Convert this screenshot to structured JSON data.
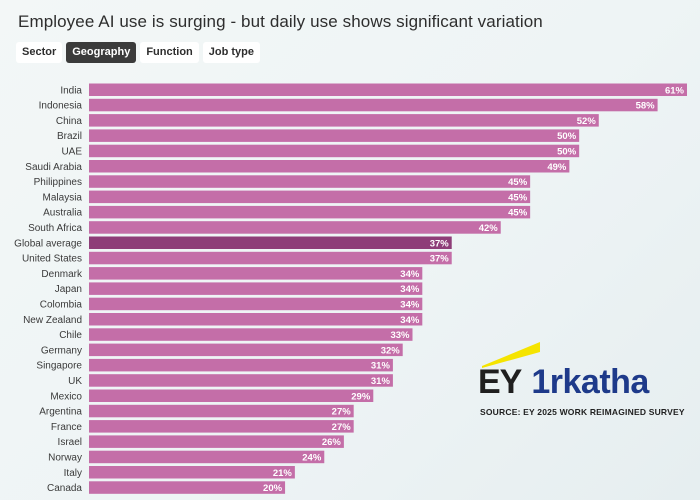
{
  "title": "Employee AI use is surging - but daily use shows significant variation",
  "tabs": [
    {
      "label": "Sector",
      "active": false
    },
    {
      "label": "Geography",
      "active": true
    },
    {
      "label": "Function",
      "active": false
    },
    {
      "label": "Job type",
      "active": false
    }
  ],
  "colors": {
    "bar": "#c46ea8",
    "bar_highlight": "#8e3d78",
    "label_text": "#ffffff"
  },
  "highlight_category": "Global average",
  "logo": {
    "ey": "EY",
    "brand": "1rkatha",
    "source": "SOURCE: EY 2025 WORK REIMAGINED SURVEY"
  },
  "chart_data": {
    "type": "bar",
    "orientation": "horizontal",
    "title": "Employee AI use is surging - but daily use shows significant variation",
    "categories": [
      "India",
      "Indonesia",
      "China",
      "Brazil",
      "UAE",
      "Saudi Arabia",
      "Philippines",
      "Malaysia",
      "Australia",
      "South Africa",
      "Global average",
      "United States",
      "Denmark",
      "Japan",
      "Colombia",
      "New Zealand",
      "Chile",
      "Germany",
      "Singapore",
      "UK",
      "Mexico",
      "Argentina",
      "France",
      "Israel",
      "Norway",
      "Italy",
      "Canada"
    ],
    "values": [
      61,
      58,
      52,
      50,
      50,
      49,
      45,
      45,
      45,
      42,
      37,
      37,
      34,
      34,
      34,
      34,
      33,
      32,
      31,
      31,
      29,
      27,
      27,
      26,
      24,
      21,
      20
    ],
    "value_suffix": "%",
    "xlim": [
      0,
      61
    ],
    "grid": false,
    "legend": "none"
  }
}
